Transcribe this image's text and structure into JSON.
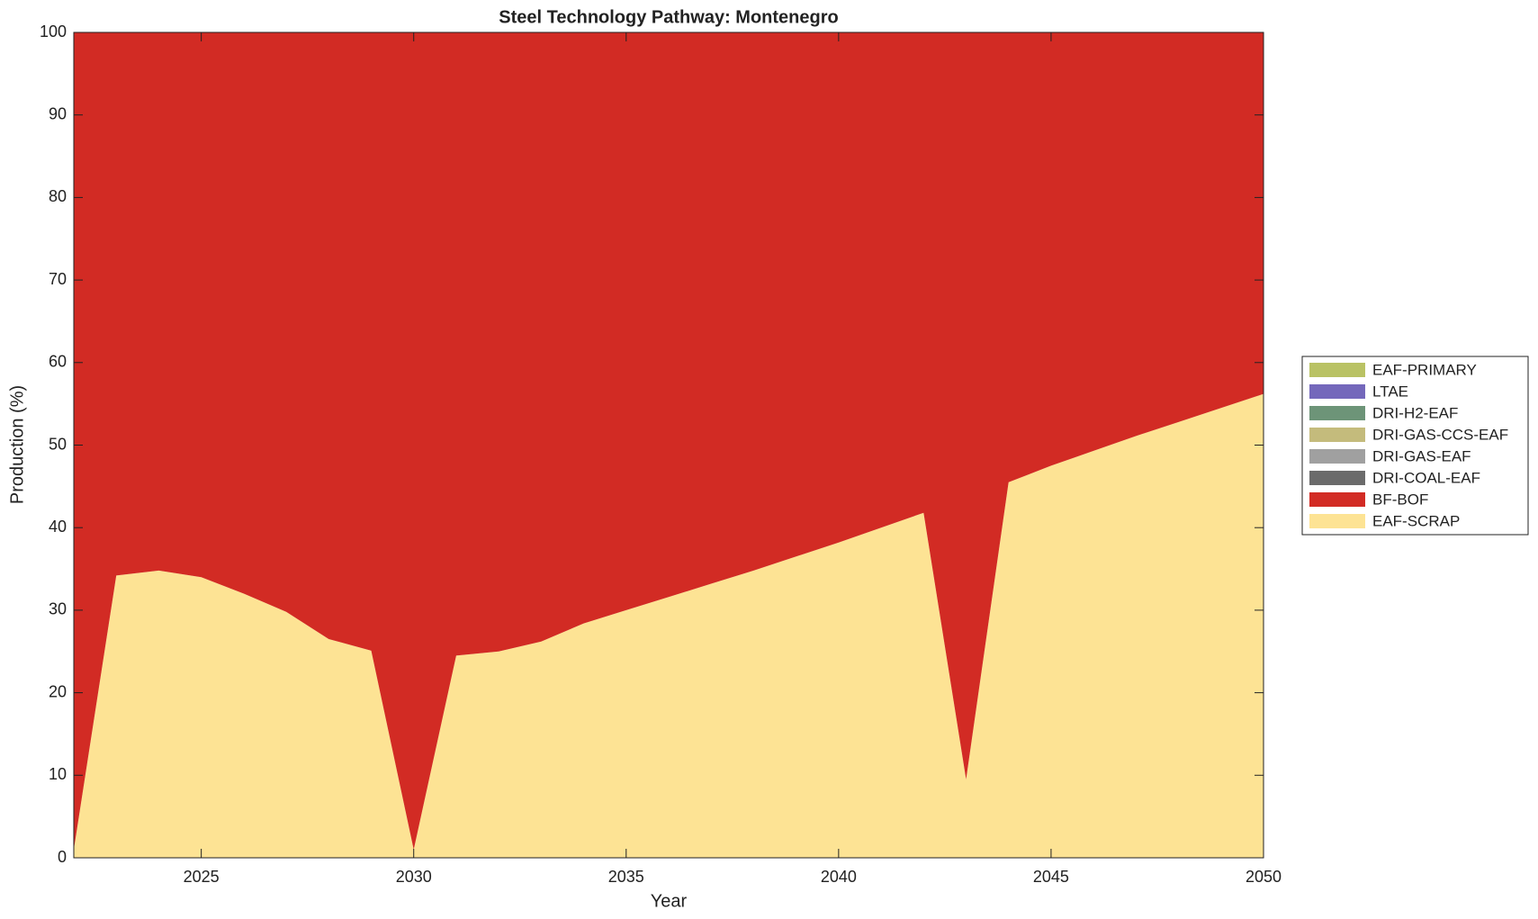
{
  "chart_data": {
    "type": "stacked_area",
    "title": "Steel Technology Pathway: Montenegro",
    "x_label": "Year",
    "y_label": "Production (%)",
    "x": [
      2022,
      2023,
      2024,
      2025,
      2026,
      2027,
      2028,
      2029,
      2030,
      2031,
      2032,
      2033,
      2034,
      2035,
      2036,
      2037,
      2038,
      2039,
      2040,
      2041,
      2042,
      2043,
      2044,
      2045,
      2046,
      2047,
      2048,
      2049,
      2050
    ],
    "series": [
      {
        "name": "EAF-SCRAP",
        "color": "#fde394",
        "values": [
          1,
          34.2,
          34.8,
          34,
          32,
          29.8,
          26.5,
          25.1,
          1,
          24.5,
          25,
          26.2,
          28.4,
          30,
          31.6,
          33.2,
          34.8,
          36.5,
          38.2,
          40,
          41.8,
          9.5,
          45.5,
          47.5,
          49.3,
          51.1,
          52.8,
          54.5,
          56.2
        ]
      },
      {
        "name": "BF-BOF",
        "color": "#d22b24",
        "values": [
          99,
          65.8,
          65.2,
          66,
          68,
          70.2,
          73.5,
          74.9,
          99,
          75.5,
          75,
          73.8,
          71.6,
          70,
          68.4,
          66.8,
          65.2,
          63.5,
          61.8,
          60,
          58.2,
          90.5,
          54.5,
          52.5,
          50.7,
          48.9,
          47.2,
          45.5,
          43.8
        ]
      },
      {
        "name": "DRI-COAL-EAF",
        "color": "#6b6b6b",
        "values": [
          0,
          0,
          0,
          0,
          0,
          0,
          0,
          0,
          0,
          0,
          0,
          0,
          0,
          0,
          0,
          0,
          0,
          0,
          0,
          0,
          0,
          0,
          0,
          0,
          0,
          0,
          0,
          0,
          0
        ]
      },
      {
        "name": "DRI-GAS-EAF",
        "color": "#a0a0a0",
        "values": [
          0,
          0,
          0,
          0,
          0,
          0,
          0,
          0,
          0,
          0,
          0,
          0,
          0,
          0,
          0,
          0,
          0,
          0,
          0,
          0,
          0,
          0,
          0,
          0,
          0,
          0,
          0,
          0,
          0
        ]
      },
      {
        "name": "DRI-GAS-CCS-EAF",
        "color": "#c4bb7c",
        "values": [
          0,
          0,
          0,
          0,
          0,
          0,
          0,
          0,
          0,
          0,
          0,
          0,
          0,
          0,
          0,
          0,
          0,
          0,
          0,
          0,
          0,
          0,
          0,
          0,
          0,
          0,
          0,
          0,
          0
        ]
      },
      {
        "name": "DRI-H2-EAF",
        "color": "#6d9478",
        "values": [
          0,
          0,
          0,
          0,
          0,
          0,
          0,
          0,
          0,
          0,
          0,
          0,
          0,
          0,
          0,
          0,
          0,
          0,
          0,
          0,
          0,
          0,
          0,
          0,
          0,
          0,
          0,
          0,
          0
        ]
      },
      {
        "name": "LTAE",
        "color": "#7468bb",
        "values": [
          0,
          0,
          0,
          0,
          0,
          0,
          0,
          0,
          0,
          0,
          0,
          0,
          0,
          0,
          0,
          0,
          0,
          0,
          0,
          0,
          0,
          0,
          0,
          0,
          0,
          0,
          0,
          0,
          0
        ]
      },
      {
        "name": "EAF-PRIMARY",
        "color": "#b9c264",
        "values": [
          0,
          0,
          0,
          0,
          0,
          0,
          0,
          0,
          0,
          0,
          0,
          0,
          0,
          0,
          0,
          0,
          0,
          0,
          0,
          0,
          0,
          0,
          0,
          0,
          0,
          0,
          0,
          0,
          0
        ]
      }
    ],
    "xlim": [
      2022,
      2050
    ],
    "xticks": [
      2025,
      2030,
      2035,
      2040,
      2045,
      2050
    ],
    "ylim": [
      0,
      100
    ],
    "yticks": [
      0,
      10,
      20,
      30,
      40,
      50,
      60,
      70,
      80,
      90,
      100
    ],
    "legend": "right"
  }
}
